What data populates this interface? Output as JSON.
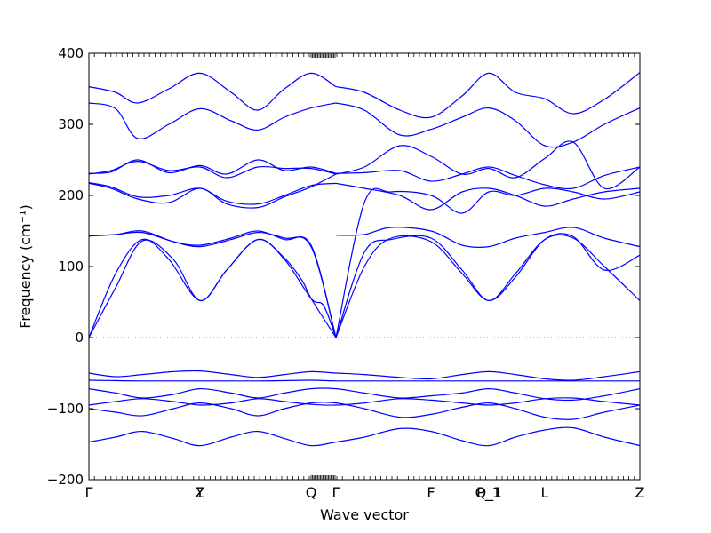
{
  "chart_data": {
    "type": "line",
    "xlabel": "Wave vector",
    "ylabel": "Frequency (cm⁻¹)",
    "ylim": [
      -200,
      400
    ],
    "yticks": [
      -200,
      -100,
      0,
      100,
      200,
      300,
      400
    ],
    "yticks_text": [
      "−200",
      "−100",
      "0",
      "100",
      "200",
      "300",
      "400"
    ],
    "xlim": [
      0,
      620
    ],
    "high_symmetry_points": [
      {
        "label": "Γ",
        "x": 0
      },
      {
        "label": "Y",
        "x": 125
      },
      {
        "label": "Z",
        "x": 125
      },
      {
        "label": "Q",
        "x": 250
      },
      {
        "label": "Γ",
        "x": 278
      },
      {
        "label": "F",
        "x": 385
      },
      {
        "label": "P_1",
        "x": 450
      },
      {
        "label": "Q_1",
        "x": 450
      },
      {
        "label": "L",
        "x": 513
      },
      {
        "label": "Z",
        "x": 620
      }
    ],
    "zero_line": {
      "y": 0,
      "style": "dotted"
    },
    "line_color": "#0000ff",
    "series": [
      {
        "x": [
          0,
          30,
          60,
          90,
          125,
          155,
          190,
          220,
          250,
          264,
          278
        ],
        "y": [
          0,
          90,
          138,
          110,
          52,
          95,
          138,
          110,
          55,
          45,
          0
        ]
      },
      {
        "x": [
          0,
          30,
          60,
          95,
          125,
          155,
          190,
          220,
          240,
          250,
          278
        ],
        "y": [
          0,
          70,
          136,
          110,
          52,
          95,
          138,
          112,
          80,
          55,
          0
        ]
      },
      {
        "x": [
          0,
          30,
          60,
          95,
          125,
          160,
          190,
          220,
          250,
          278
        ],
        "y": [
          143,
          145,
          148,
          135,
          128,
          138,
          148,
          140,
          128,
          0
        ]
      },
      {
        "x": [
          0,
          30,
          60,
          95,
          125,
          160,
          190,
          220,
          250,
          278
        ],
        "y": [
          143,
          145,
          150,
          135,
          130,
          140,
          150,
          138,
          130,
          0
        ]
      },
      {
        "x": [
          0,
          25,
          55,
          90,
          125,
          155,
          190,
          220,
          250,
          278
        ],
        "y": [
          217,
          210,
          195,
          190,
          210,
          188,
          183,
          198,
          212,
          230
        ]
      },
      {
        "x": [
          0,
          25,
          55,
          90,
          125,
          155,
          190,
          220,
          250,
          278
        ],
        "y": [
          218,
          212,
          198,
          200,
          210,
          192,
          188,
          200,
          214,
          217
        ]
      },
      {
        "x": [
          0,
          25,
          55,
          90,
          125,
          155,
          190,
          220,
          250,
          278
        ],
        "y": [
          230,
          235,
          248,
          235,
          240,
          225,
          240,
          238,
          238,
          230
        ]
      },
      {
        "x": [
          0,
          25,
          55,
          90,
          125,
          155,
          190,
          220,
          250,
          278
        ],
        "y": [
          231,
          233,
          250,
          232,
          242,
          230,
          250,
          235,
          240,
          231
        ]
      },
      {
        "x": [
          0,
          30,
          55,
          90,
          125,
          160,
          190,
          220,
          250,
          278
        ],
        "y": [
          353,
          345,
          330,
          350,
          372,
          345,
          320,
          350,
          372,
          353
        ]
      },
      {
        "x": [
          0,
          30,
          55,
          90,
          125,
          160,
          190,
          220,
          250,
          278
        ],
        "y": [
          330,
          322,
          280,
          300,
          322,
          305,
          292,
          310,
          323,
          330
        ]
      },
      {
        "x": [
          278,
          310,
          340,
          385,
          420,
          450,
          480,
          513,
          545,
          580,
          620
        ],
        "y": [
          0,
          190,
          205,
          200,
          175,
          205,
          200,
          210,
          205,
          195,
          205
        ]
      },
      {
        "x": [
          278,
          310,
          340,
          385,
          420,
          450,
          480,
          513,
          545,
          580,
          620
        ],
        "y": [
          144,
          145,
          155,
          150,
          130,
          128,
          140,
          148,
          155,
          140,
          128
        ]
      },
      {
        "x": [
          278,
          310,
          340,
          385,
          420,
          450,
          480,
          513,
          545,
          580,
          620
        ],
        "y": [
          0,
          120,
          138,
          140,
          95,
          52,
          90,
          138,
          140,
          100,
          52
        ]
      },
      {
        "x": [
          278,
          310,
          340,
          385,
          420,
          450,
          480,
          513,
          545,
          580,
          620
        ],
        "y": [
          0,
          100,
          140,
          135,
          90,
          52,
          85,
          138,
          142,
          95,
          116
        ]
      },
      {
        "x": [
          278,
          310,
          350,
          385,
          420,
          450,
          480,
          513,
          545,
          580,
          620
        ],
        "y": [
          217,
          210,
          200,
          180,
          205,
          210,
          200,
          185,
          195,
          205,
          210
        ]
      },
      {
        "x": [
          278,
          310,
          350,
          385,
          420,
          450,
          480,
          513,
          545,
          580,
          620
        ],
        "y": [
          231,
          232,
          235,
          220,
          230,
          240,
          228,
          215,
          210,
          228,
          240
        ]
      },
      {
        "x": [
          278,
          310,
          350,
          385,
          420,
          450,
          480,
          513,
          545,
          580,
          620
        ],
        "y": [
          230,
          240,
          270,
          255,
          230,
          238,
          225,
          252,
          275,
          210,
          240
        ]
      },
      {
        "x": [
          278,
          310,
          350,
          385,
          420,
          450,
          480,
          513,
          545,
          580,
          620
        ],
        "y": [
          353,
          345,
          320,
          310,
          340,
          372,
          345,
          336,
          315,
          335,
          373
        ]
      },
      {
        "x": [
          278,
          310,
          350,
          385,
          420,
          450,
          480,
          513,
          545,
          580,
          620
        ],
        "y": [
          330,
          320,
          285,
          293,
          310,
          323,
          305,
          270,
          275,
          300,
          323
        ]
      },
      {
        "x": [
          0,
          30,
          60,
          95,
          125,
          160,
          190,
          220,
          250,
          278,
          310,
          350,
          385,
          420,
          450,
          480,
          513,
          545,
          580,
          620
        ],
        "y": [
          -50,
          -55,
          -52,
          -48,
          -47,
          -52,
          -56,
          -52,
          -48,
          -50,
          -52,
          -56,
          -58,
          -52,
          -48,
          -52,
          -58,
          -60,
          -55,
          -48
        ]
      },
      {
        "x": [
          0,
          60,
          125,
          190,
          250,
          278,
          340,
          385,
          450,
          513,
          580,
          620
        ],
        "y": [
          -60,
          -61,
          -61,
          -61,
          -60,
          -61,
          -61,
          -61,
          -61,
          -61,
          -61,
          -61
        ]
      },
      {
        "x": [
          0,
          30,
          60,
          95,
          125,
          160,
          190,
          220,
          250,
          278,
          310,
          350,
          385,
          420,
          450,
          480,
          513,
          545,
          580,
          620
        ],
        "y": [
          -72,
          -78,
          -85,
          -80,
          -72,
          -78,
          -85,
          -78,
          -72,
          -72,
          -78,
          -85,
          -82,
          -78,
          -72,
          -78,
          -86,
          -88,
          -82,
          -72
        ]
      },
      {
        "x": [
          0,
          30,
          60,
          95,
          125,
          160,
          190,
          220,
          250,
          278,
          310,
          350,
          385,
          420,
          450,
          480,
          513,
          545,
          580,
          620
        ],
        "y": [
          -95,
          -90,
          -86,
          -90,
          -95,
          -92,
          -86,
          -90,
          -94,
          -95,
          -92,
          -86,
          -88,
          -92,
          -95,
          -92,
          -86,
          -85,
          -90,
          -95
        ]
      },
      {
        "x": [
          0,
          30,
          60,
          95,
          125,
          160,
          190,
          220,
          250,
          278,
          310,
          350,
          385,
          420,
          450,
          480,
          513,
          545,
          580,
          620
        ],
        "y": [
          -100,
          -105,
          -110,
          -100,
          -92,
          -100,
          -110,
          -100,
          -92,
          -92,
          -100,
          -112,
          -108,
          -98,
          -92,
          -100,
          -112,
          -115,
          -105,
          -95
        ]
      },
      {
        "x": [
          0,
          30,
          60,
          95,
          125,
          160,
          190,
          220,
          250,
          278,
          310,
          350,
          385,
          420,
          450,
          480,
          513,
          545,
          580,
          620
        ],
        "y": [
          -147,
          -140,
          -132,
          -142,
          -152,
          -140,
          -132,
          -142,
          -152,
          -147,
          -140,
          -128,
          -132,
          -145,
          -152,
          -140,
          -130,
          -127,
          -140,
          -152
        ]
      }
    ]
  }
}
